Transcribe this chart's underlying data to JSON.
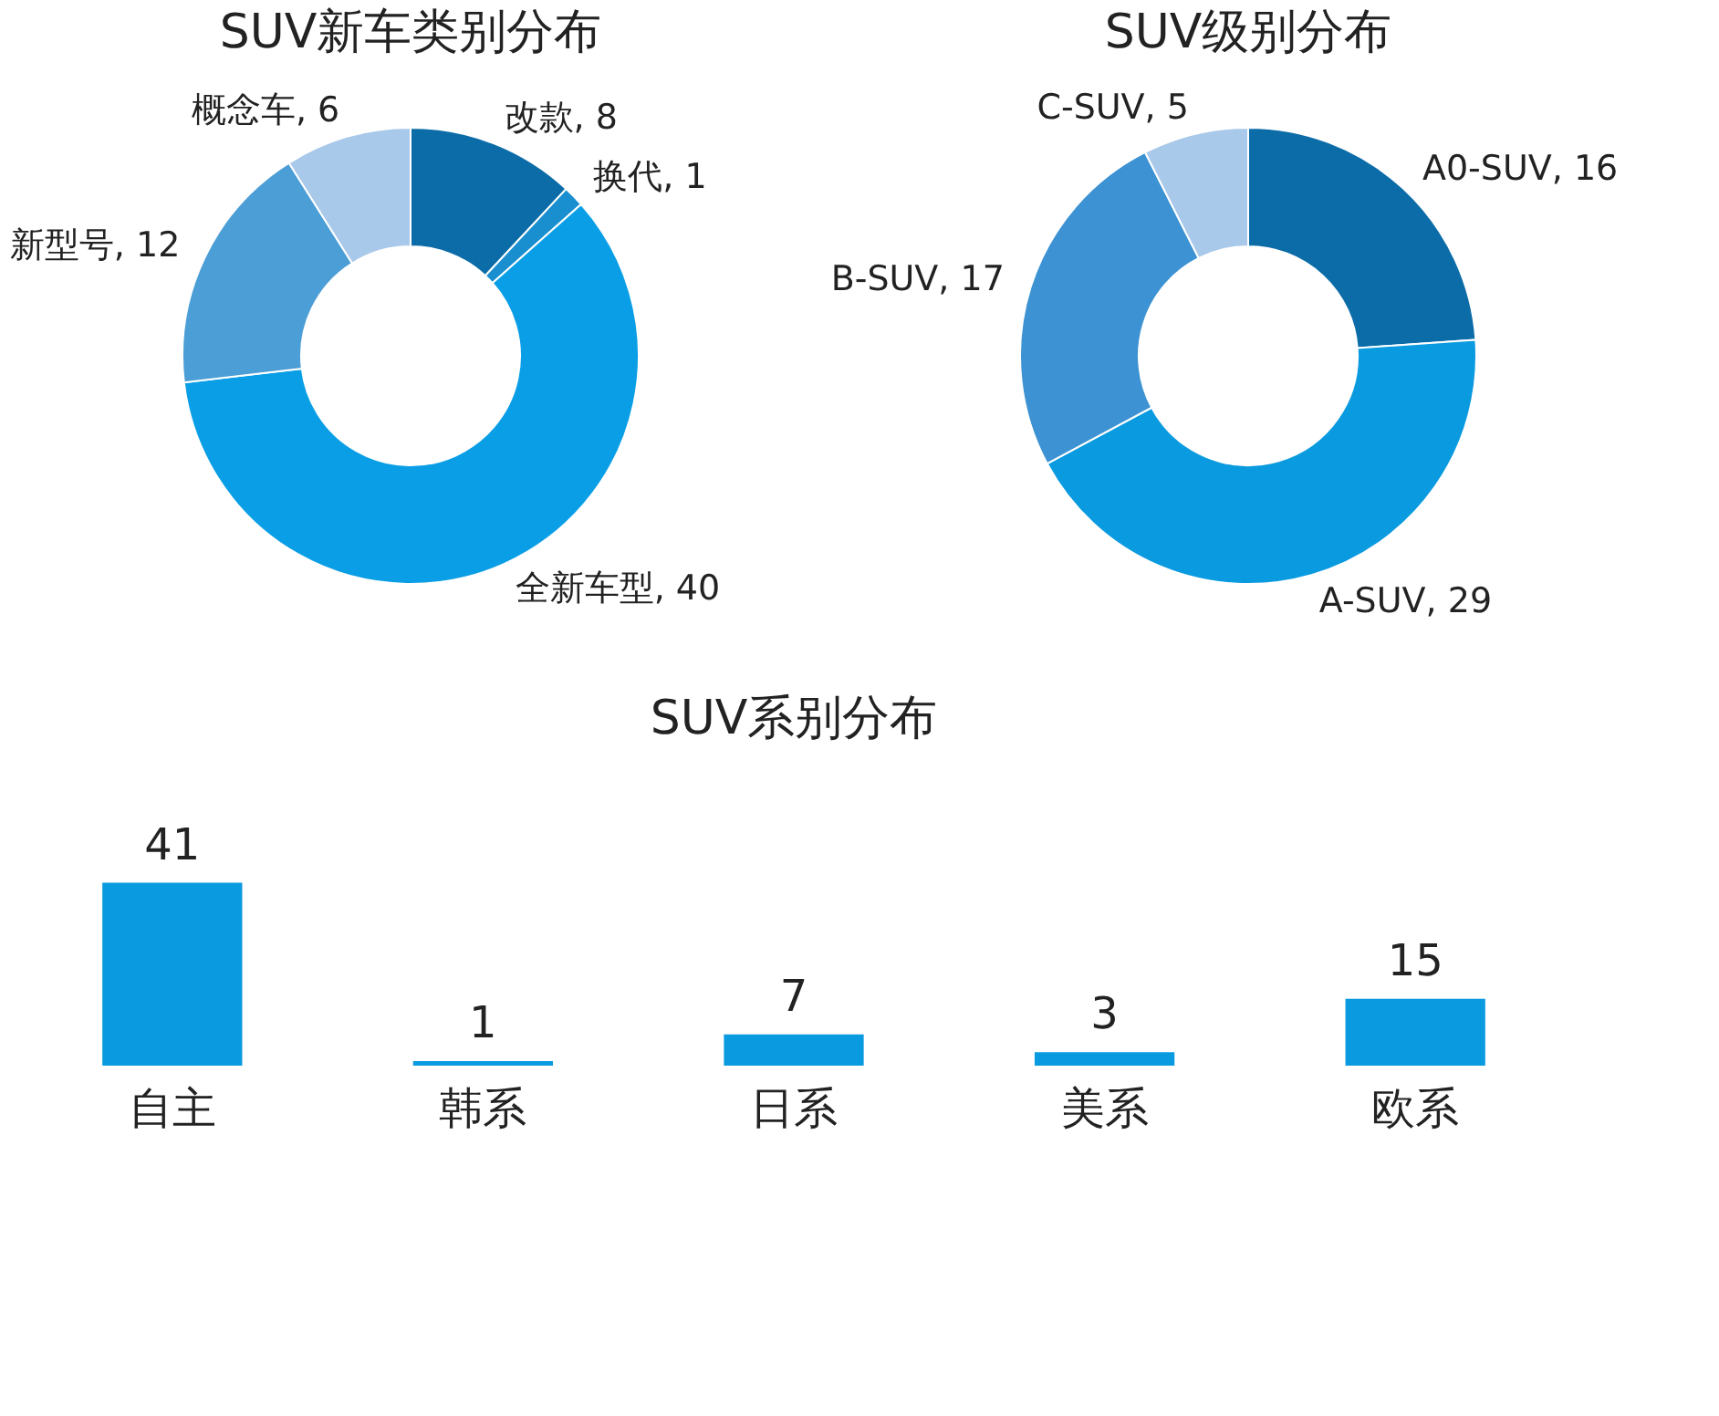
{
  "chart_data": [
    {
      "type": "donut",
      "title": "SUV新车类别分布",
      "categories": [
        "改款, 8",
        "换代, 1",
        "全新车型, 40",
        "新型号, 12",
        "概念车, 6"
      ],
      "values": [
        8,
        1,
        40,
        12,
        6
      ],
      "colors": [
        "#0b6ca8",
        "#1a8fd0",
        "#0a9ee6",
        "#4c9ed6",
        "#a9c9ea"
      ]
    },
    {
      "type": "donut",
      "title": "SUV级别分布",
      "categories": [
        "A0-SUV, 16",
        "A-SUV, 29",
        "B-SUV, 17",
        "C-SUV, 5"
      ],
      "values": [
        16,
        29,
        17,
        5
      ],
      "colors": [
        "#0b6ca8",
        "#0a9ae0",
        "#3c92d2",
        "#a9c9ea"
      ]
    },
    {
      "type": "bar",
      "title": "SUV系别分布",
      "categories": [
        "自主",
        "韩系",
        "日系",
        "美系",
        "欧系"
      ],
      "values": [
        41,
        1,
        7,
        3,
        15
      ],
      "color": "#0a9ae0",
      "data_labels": true
    }
  ]
}
